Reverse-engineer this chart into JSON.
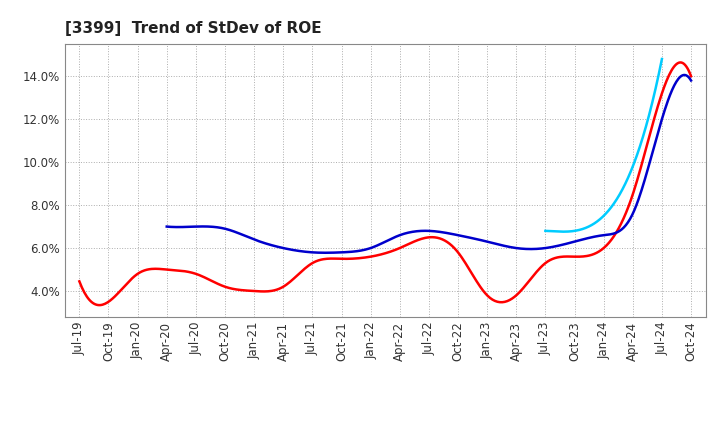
{
  "title": "[3399]  Trend of StDev of ROE",
  "ylim": [
    0.028,
    0.155
  ],
  "yticks": [
    0.04,
    0.06,
    0.08,
    0.1,
    0.12,
    0.14
  ],
  "ytick_labels": [
    "4.0%",
    "6.0%",
    "8.0%",
    "10.0%",
    "12.0%",
    "14.0%"
  ],
  "x_labels": [
    "Jul-19",
    "Oct-19",
    "Jan-20",
    "Apr-20",
    "Jul-20",
    "Oct-20",
    "Jan-21",
    "Apr-21",
    "Jul-21",
    "Oct-21",
    "Jan-22",
    "Apr-22",
    "Jul-22",
    "Oct-22",
    "Jan-23",
    "Apr-23",
    "Jul-23",
    "Oct-23",
    "Jan-24",
    "Apr-24",
    "Jul-24",
    "Oct-24"
  ],
  "series": {
    "3 Years": {
      "color": "#FF0000",
      "values": [
        0.0445,
        0.035,
        0.048,
        0.05,
        0.048,
        0.042,
        0.04,
        0.042,
        0.053,
        0.055,
        0.056,
        0.06,
        0.065,
        0.058,
        0.038,
        0.038,
        0.053,
        0.056,
        0.06,
        0.085,
        0.132,
        0.14
      ]
    },
    "5 Years": {
      "color": "#0000CC",
      "values": [
        null,
        null,
        null,
        0.07,
        0.07,
        0.069,
        0.064,
        0.06,
        0.058,
        0.058,
        0.06,
        0.066,
        0.068,
        0.066,
        0.063,
        0.06,
        0.06,
        0.063,
        0.066,
        0.076,
        0.12,
        0.138
      ]
    },
    "7 Years": {
      "color": "#00CCFF",
      "values": [
        null,
        null,
        null,
        null,
        null,
        null,
        null,
        null,
        null,
        null,
        null,
        null,
        null,
        null,
        null,
        null,
        0.068,
        0.068,
        0.075,
        0.098,
        0.148,
        null
      ]
    },
    "10 Years": {
      "color": "#008000",
      "values": [
        null,
        null,
        null,
        null,
        null,
        null,
        null,
        null,
        null,
        null,
        null,
        null,
        null,
        null,
        null,
        null,
        null,
        null,
        null,
        null,
        null,
        null
      ]
    }
  },
  "legend_colors": {
    "3 Years": "#FF0000",
    "5 Years": "#0000CC",
    "7 Years": "#00CCFF",
    "10 Years": "#008000"
  },
  "background_color": "#FFFFFF",
  "grid_color": "#999999",
  "title_fontsize": 11,
  "axis_fontsize": 8.5
}
